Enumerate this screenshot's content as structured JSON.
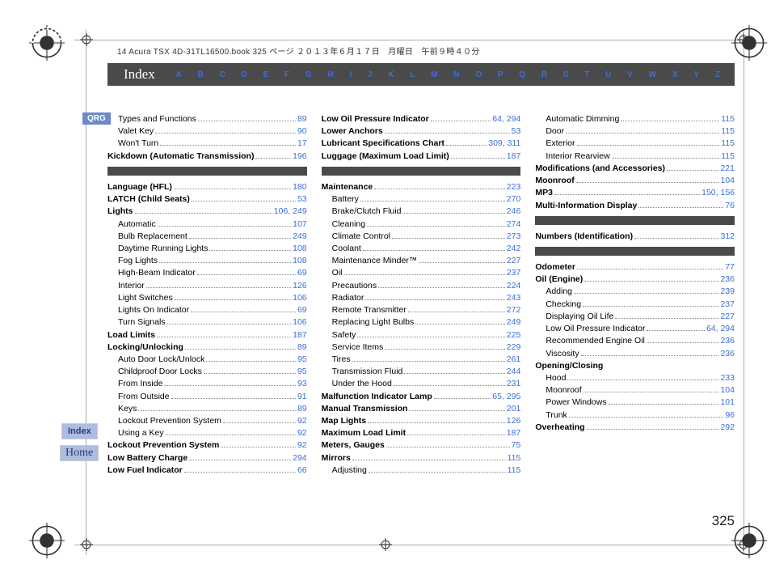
{
  "bookinfo": "14 Acura TSX 4D-31TL16500.book  325 ページ  ２０１３年６月１７日　月曜日　午前９時４０分",
  "header": {
    "title": "Index"
  },
  "alpha": [
    "A",
    "B",
    "C",
    "D",
    "E",
    "F",
    "G",
    "H",
    "I",
    "J",
    "K",
    "L",
    "M",
    "N",
    "O",
    "P",
    "Q",
    "R",
    "S",
    "T",
    "U",
    "V",
    "W",
    "X",
    "Y",
    "Z"
  ],
  "badges": {
    "qrg": "QRG",
    "index": "Index",
    "home": "Home"
  },
  "page_number": "325",
  "columns": [
    {
      "blocks": [
        {
          "type": "entries",
          "items": [
            {
              "label": "Types and Functions",
              "pages": "89",
              "sub": true
            },
            {
              "label": "Valet Key",
              "pages": "90",
              "sub": true
            },
            {
              "label": "Won't Turn",
              "pages": "17",
              "sub": true
            },
            {
              "label": "Kickdown (Automatic Transmission)",
              "pages": "196",
              "bold": true
            }
          ]
        },
        {
          "type": "bar"
        },
        {
          "type": "entries",
          "items": [
            {
              "label": "Language (HFL)",
              "pages": "180",
              "bold": true
            },
            {
              "label": "LATCH (Child Seats)",
              "pages": "53",
              "bold": true
            },
            {
              "label": "Lights",
              "pages": "106, 249",
              "bold": true
            },
            {
              "label": "Automatic",
              "pages": "107",
              "sub": true
            },
            {
              "label": "Bulb Replacement",
              "pages": "249",
              "sub": true
            },
            {
              "label": "Daytime Running Lights",
              "pages": "108",
              "sub": true
            },
            {
              "label": "Fog Lights",
              "pages": "108",
              "sub": true
            },
            {
              "label": "High-Beam Indicator",
              "pages": "69",
              "sub": true
            },
            {
              "label": "Interior",
              "pages": "126",
              "sub": true
            },
            {
              "label": "Light Switches",
              "pages": "106",
              "sub": true
            },
            {
              "label": "Lights On Indicator",
              "pages": "69",
              "sub": true
            },
            {
              "label": "Turn Signals",
              "pages": "106",
              "sub": true
            },
            {
              "label": "Load Limits",
              "pages": "187",
              "bold": true
            },
            {
              "label": "Locking/Unlocking",
              "pages": "89",
              "bold": true
            },
            {
              "label": "Auto Door Lock/Unlock",
              "pages": "95",
              "sub": true
            },
            {
              "label": "Childproof Door Locks",
              "pages": "95",
              "sub": true
            },
            {
              "label": "From Inside",
              "pages": "93",
              "sub": true
            },
            {
              "label": "From Outside",
              "pages": "91",
              "sub": true
            },
            {
              "label": "Keys",
              "pages": "89",
              "sub": true
            },
            {
              "label": "Lockout Prevention System",
              "pages": "92",
              "sub": true
            },
            {
              "label": "Using a Key",
              "pages": "92",
              "sub": true
            },
            {
              "label": "Lockout Prevention System",
              "pages": "92",
              "bold": true
            },
            {
              "label": "Low Battery Charge",
              "pages": "294",
              "bold": true
            },
            {
              "label": "Low Fuel Indicator",
              "pages": "66",
              "bold": true
            }
          ]
        }
      ]
    },
    {
      "blocks": [
        {
          "type": "entries",
          "items": [
            {
              "label": "Low Oil Pressure Indicator",
              "pages": "64, 294",
              "bold": true
            },
            {
              "label": "Lower Anchors",
              "pages": "53",
              "bold": true
            },
            {
              "label": "Lubricant Specifications Chart",
              "pages": "309, 311",
              "bold": true
            },
            {
              "label": "Luggage (Maximum Load Limit)",
              "pages": "187",
              "bold": true
            }
          ]
        },
        {
          "type": "bar"
        },
        {
          "type": "entries",
          "items": [
            {
              "label": "Maintenance",
              "pages": "223",
              "bold": true
            },
            {
              "label": "Battery",
              "pages": "270",
              "sub": true
            },
            {
              "label": "Brake/Clutch Fluid",
              "pages": "246",
              "sub": true
            },
            {
              "label": "Cleaning",
              "pages": "274",
              "sub": true
            },
            {
              "label": "Climate Control",
              "pages": "273",
              "sub": true
            },
            {
              "label": "Coolant",
              "pages": "242",
              "sub": true
            },
            {
              "label": "Maintenance Minder™",
              "pages": "227",
              "sub": true
            },
            {
              "label": "Oil",
              "pages": "237",
              "sub": true
            },
            {
              "label": "Precautions",
              "pages": "224",
              "sub": true
            },
            {
              "label": "Radiator",
              "pages": "243",
              "sub": true
            },
            {
              "label": "Remote Transmitter",
              "pages": "272",
              "sub": true
            },
            {
              "label": "Replacing Light Bulbs",
              "pages": "249",
              "sub": true
            },
            {
              "label": "Safety",
              "pages": "225",
              "sub": true
            },
            {
              "label": "Service Items",
              "pages": "229",
              "sub": true
            },
            {
              "label": "Tires",
              "pages": "261",
              "sub": true
            },
            {
              "label": "Transmission Fluid",
              "pages": "244",
              "sub": true
            },
            {
              "label": "Under the Hood",
              "pages": "231",
              "sub": true
            },
            {
              "label": "Malfunction Indicator Lamp",
              "pages": "65, 295",
              "bold": true
            },
            {
              "label": "Manual Transmission",
              "pages": "201",
              "bold": true
            },
            {
              "label": "Map Lights",
              "pages": "126",
              "bold": true
            },
            {
              "label": "Maximum Load Limit",
              "pages": "187",
              "bold": true
            },
            {
              "label": "Meters, Gauges",
              "pages": "75",
              "bold": true
            },
            {
              "label": "Mirrors",
              "pages": "115",
              "bold": true
            },
            {
              "label": "Adjusting",
              "pages": "115",
              "sub": true
            }
          ]
        }
      ]
    },
    {
      "blocks": [
        {
          "type": "entries",
          "items": [
            {
              "label": "Automatic Dimming",
              "pages": "115",
              "sub": true
            },
            {
              "label": "Door",
              "pages": "115",
              "sub": true
            },
            {
              "label": "Exterior",
              "pages": "115",
              "sub": true
            },
            {
              "label": "Interior Rearview",
              "pages": "115",
              "sub": true
            },
            {
              "label": "Modifications (and Accessories)",
              "pages": "221",
              "bold": true
            },
            {
              "label": "Moonroof",
              "pages": "104",
              "bold": true
            },
            {
              "label": "MP3",
              "pages": "150, 156",
              "bold": true
            },
            {
              "label": "Multi-Information Display",
              "pages": "76",
              "bold": true
            }
          ]
        },
        {
          "type": "bar"
        },
        {
          "type": "entries",
          "items": [
            {
              "label": "Numbers (Identification)",
              "pages": "312",
              "bold": true
            }
          ]
        },
        {
          "type": "bar"
        },
        {
          "type": "entries",
          "items": [
            {
              "label": "Odometer",
              "pages": "77",
              "bold": true
            },
            {
              "label": "Oil (Engine)",
              "pages": "236",
              "bold": true
            },
            {
              "label": "Adding",
              "pages": "239",
              "sub": true
            },
            {
              "label": "Checking",
              "pages": "237",
              "sub": true
            },
            {
              "label": "Displaying Oil Life",
              "pages": "227",
              "sub": true
            },
            {
              "label": "Low Oil Pressure Indicator",
              "pages": "64, 294",
              "sub": true
            },
            {
              "label": "Recommended Engine Oil",
              "pages": "236",
              "sub": true
            },
            {
              "label": "Viscosity",
              "pages": "236",
              "sub": true
            },
            {
              "label": "Opening/Closing",
              "pages": "",
              "bold": true,
              "nodots": true
            },
            {
              "label": "Hood",
              "pages": "233",
              "sub": true
            },
            {
              "label": "Moonroof",
              "pages": "104",
              "sub": true
            },
            {
              "label": "Power Windows",
              "pages": "101",
              "sub": true
            },
            {
              "label": "Trunk",
              "pages": "96",
              "sub": true
            },
            {
              "label": "Overheating",
              "pages": "292",
              "bold": true
            }
          ]
        }
      ]
    }
  ]
}
